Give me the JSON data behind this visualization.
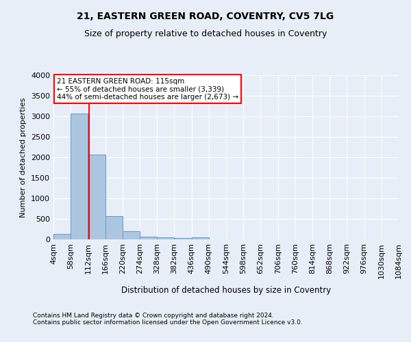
{
  "title_line1": "21, EASTERN GREEN ROAD, COVENTRY, CV5 7LG",
  "title_line2": "Size of property relative to detached houses in Coventry",
  "xlabel": "Distribution of detached houses by size in Coventry",
  "ylabel": "Number of detached properties",
  "footer_line1": "Contains HM Land Registry data © Crown copyright and database right 2024.",
  "footer_line2": "Contains public sector information licensed under the Open Government Licence v3.0.",
  "annotation_line1": "21 EASTERN GREEN ROAD: 115sqm",
  "annotation_line2": "← 55% of detached houses are smaller (3,339)",
  "annotation_line3": "44% of semi-detached houses are larger (2,673) →",
  "bar_color": "#adc6e0",
  "bar_edge_color": "#5b9bd5",
  "vline_color": "red",
  "vline_x": 115,
  "bin_edges": [
    4,
    58,
    112,
    166,
    220,
    274,
    328,
    382,
    436,
    490,
    544,
    598,
    652,
    706,
    760,
    814,
    868,
    922,
    976,
    1030,
    1084
  ],
  "bar_heights": [
    140,
    3060,
    2060,
    560,
    195,
    75,
    55,
    30,
    50,
    0,
    0,
    0,
    0,
    0,
    0,
    0,
    0,
    0,
    0,
    0
  ],
  "ylim": [
    0,
    4000
  ],
  "yticks": [
    0,
    500,
    1000,
    1500,
    2000,
    2500,
    3000,
    3500,
    4000
  ],
  "background_color": "#e8eef7",
  "grid_color": "#ffffff",
  "annotation_box_edgecolor": "red",
  "annotation_box_facecolor": "#ffffff"
}
